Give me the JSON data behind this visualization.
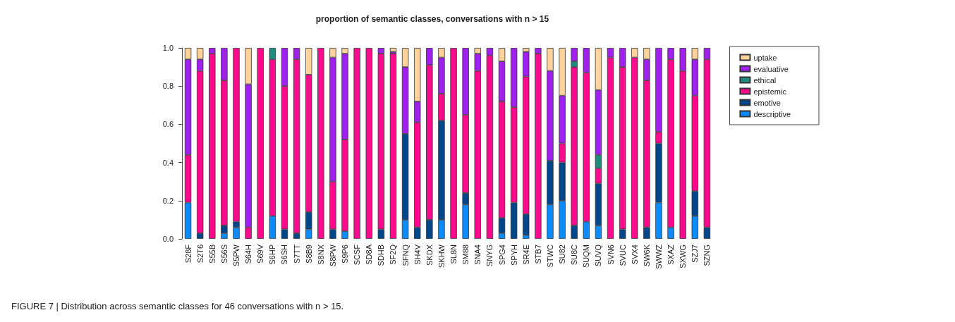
{
  "chart_data": {
    "type": "bar",
    "title": "proportion of semantic classes, conversations with n > 15",
    "categories": [
      "S28F",
      "S2T6",
      "S55B",
      "S56S",
      "S5PW",
      "S64H",
      "S69V",
      "S6HP",
      "S6SH",
      "S7TT",
      "S8B9",
      "S8NX",
      "S8PW",
      "S9P6",
      "SCSF",
      "SD8A",
      "SDHB",
      "SF2Q",
      "SFNQ",
      "SH4V",
      "SKDX",
      "SKHW",
      "SL8N",
      "SM88",
      "SNA4",
      "SNYG",
      "SPG4",
      "SPYH",
      "SR4E",
      "STB7",
      "STWC",
      "SU82",
      "SU8C",
      "SUQM",
      "SUVQ",
      "SVN6",
      "SVUC",
      "SVX4",
      "SW6K",
      "SWWZ",
      "SXAZ",
      "SXWG",
      "SZJ7",
      "SZNG"
    ],
    "stacked": true,
    "series": [
      {
        "name": "descriptive",
        "color": "#0a8cff",
        "values": [
          0.19,
          0,
          0,
          0.03,
          0.06,
          0,
          0,
          0.12,
          0,
          0,
          0.05,
          0,
          0,
          0.04,
          0,
          0,
          0,
          0,
          0.1,
          0,
          0,
          0.1,
          0,
          0.18,
          0,
          0,
          0.03,
          0,
          0.02,
          0,
          0.18,
          0.2,
          0,
          0.09,
          0.07,
          0,
          0,
          0,
          0,
          0.19,
          0.06,
          0,
          0.12,
          0
        ]
      },
      {
        "name": "emotive",
        "color": "#00468b",
        "values": [
          0,
          0.03,
          0,
          0.04,
          0.03,
          0,
          0,
          0,
          0.05,
          0.03,
          0.09,
          0,
          0.05,
          0,
          0,
          0,
          0.05,
          0,
          0.45,
          0.06,
          0.1,
          0.52,
          0,
          0.06,
          0,
          0,
          0.08,
          0.19,
          0.11,
          0,
          0.23,
          0.2,
          0.07,
          0,
          0.22,
          0,
          0.05,
          0,
          0.06,
          0.31,
          0,
          0,
          0.13,
          0.06
        ]
      },
      {
        "name": "epistemic",
        "color": "#ff0a8c",
        "values": [
          0.25,
          0.85,
          0.97,
          0.76,
          0.91,
          0.06,
          1,
          0.82,
          0.75,
          0.91,
          0.72,
          1,
          0.25,
          0.48,
          1,
          1,
          0.92,
          0.97,
          0,
          0.55,
          0.81,
          0.14,
          1,
          0.41,
          0.88,
          0.96,
          0.61,
          0.5,
          0.72,
          0.97,
          0,
          0.1,
          0.83,
          0.78,
          0.08,
          0.95,
          0.85,
          0.95,
          0.77,
          0.06,
          0.88,
          0.88,
          0.5,
          0.88
        ]
      },
      {
        "name": "ethical",
        "color": "#1e8c7e",
        "values": [
          0,
          0,
          0,
          0,
          0,
          0,
          0,
          0.06,
          0,
          0,
          0,
          0,
          0,
          0,
          0,
          0,
          0,
          0,
          0,
          0,
          0,
          0,
          0,
          0,
          0,
          0,
          0,
          0,
          0,
          0,
          0,
          0,
          0.03,
          0,
          0.07,
          0,
          0,
          0,
          0,
          0,
          0,
          0,
          0,
          0
        ]
      },
      {
        "name": "evaluative",
        "color": "#a020f0",
        "values": [
          0.5,
          0.06,
          0.03,
          0.17,
          0,
          0.75,
          0,
          0,
          0.2,
          0.06,
          0,
          0,
          0.65,
          0.45,
          0,
          0,
          0.03,
          0.01,
          0.35,
          0.11,
          0.09,
          0.19,
          0,
          0.35,
          0.09,
          0.04,
          0.21,
          0.31,
          0.13,
          0.03,
          0.47,
          0.25,
          0.07,
          0.13,
          0.34,
          0.05,
          0.1,
          0,
          0.11,
          0.44,
          0.06,
          0.12,
          0.19,
          0.06
        ]
      },
      {
        "name": "uptake",
        "color": "#ffd39b",
        "values": [
          0.06,
          0.06,
          0,
          0,
          0,
          0.19,
          0,
          0,
          0,
          0,
          0.14,
          0,
          0.05,
          0.03,
          0,
          0,
          0,
          0.02,
          0.1,
          0.28,
          0,
          0.05,
          0,
          0,
          0.03,
          0,
          0.07,
          0,
          0.02,
          0,
          0.12,
          0.25,
          0,
          0,
          0.22,
          0,
          0,
          0.05,
          0.06,
          0,
          0,
          0,
          0.06,
          0
        ]
      }
    ],
    "ylim": [
      0,
      1
    ],
    "yticks": [
      {
        "value": 0,
        "label": "0.0"
      },
      {
        "value": 0.2,
        "label": "0.2"
      },
      {
        "value": 0.4,
        "label": "0.4"
      },
      {
        "value": 0.6,
        "label": "0.6"
      },
      {
        "value": 0.8,
        "label": "0.8"
      },
      {
        "value": 1,
        "label": "1.0"
      }
    ],
    "grid": false,
    "legend": "right",
    "annotations": [
      "FIGURE 7 | Distribution across semantic classes for 46 conversations with n > 15."
    ]
  }
}
